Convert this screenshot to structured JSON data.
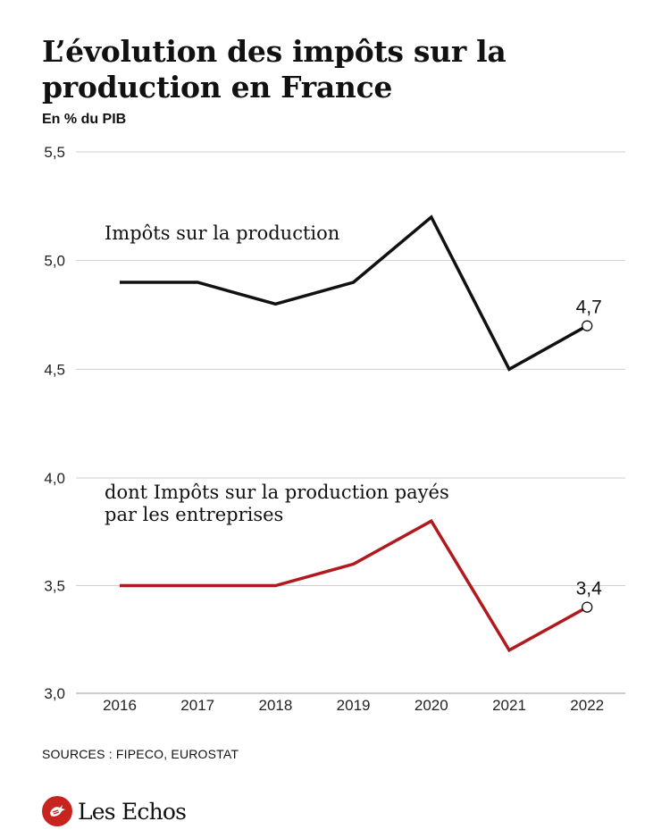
{
  "header": {
    "title": "L’évolution des impôts sur la production en France",
    "subtitle": "En % du PIB"
  },
  "footer": {
    "sources": "SOURCES : FIPECO, EUROSTAT",
    "brand": "Les Echos"
  },
  "colors": {
    "series_total": "#111111",
    "series_entreprises": "#b0191e",
    "grid": "#cfcfcf"
  },
  "chart_data": {
    "type": "line",
    "x": [
      "2016",
      "2017",
      "2018",
      "2019",
      "2020",
      "2021",
      "2022"
    ],
    "ylim": [
      3.0,
      5.5
    ],
    "yticks": [
      "3,0",
      "3,5",
      "4,0",
      "4,5",
      "5,0",
      "5,5"
    ],
    "ytick_values": [
      3.0,
      3.5,
      4.0,
      4.5,
      5.0,
      5.5
    ],
    "grid": true,
    "broken_axis": true,
    "series": [
      {
        "name": "Impôts sur la production",
        "values": [
          4.9,
          4.9,
          4.8,
          4.9,
          5.2,
          4.5,
          4.7
        ],
        "end_label": "4,7"
      },
      {
        "name": "dont Impôts sur la production payés par les entreprises",
        "name_lines": [
          "dont Impôts sur la production payés",
          "par les entreprises"
        ],
        "values": [
          3.5,
          3.5,
          3.5,
          3.6,
          3.8,
          3.2,
          3.4
        ],
        "end_label": "3,4"
      }
    ]
  }
}
